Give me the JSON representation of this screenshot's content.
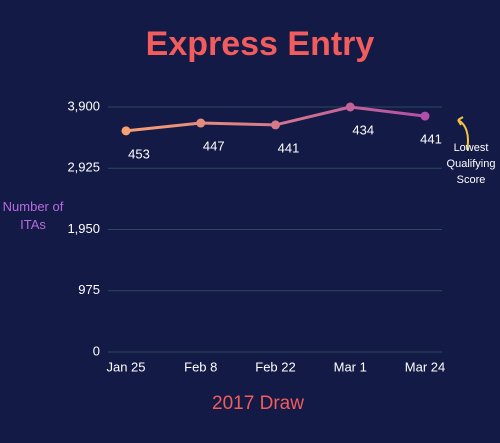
{
  "chart_data": {
    "type": "line",
    "title": "Express Entry",
    "xlabel": "2017 Draw",
    "ylabel": "Number of ITAs",
    "categories": [
      "Jan 25",
      "Feb 8",
      "Feb 22",
      "Mar 1",
      "Mar 24"
    ],
    "values": [
      3520,
      3645,
      3615,
      3900,
      3755
    ],
    "colors": [
      "#f7a072",
      "#b24fa6"
    ],
    "score_labels": [
      453,
      447,
      441,
      434,
      441
    ],
    "annotation": "Lowest Qualifying Score",
    "ylim": [
      0,
      3900
    ],
    "yticks": [
      0,
      {
        "value": 975,
        "label": "975"
      },
      {
        "value": 1950,
        "label": "1,950"
      },
      {
        "value": 2925,
        "label": "2,925"
      },
      {
        "value": 3900,
        "label": "3,900"
      }
    ],
    "grid": true
  }
}
